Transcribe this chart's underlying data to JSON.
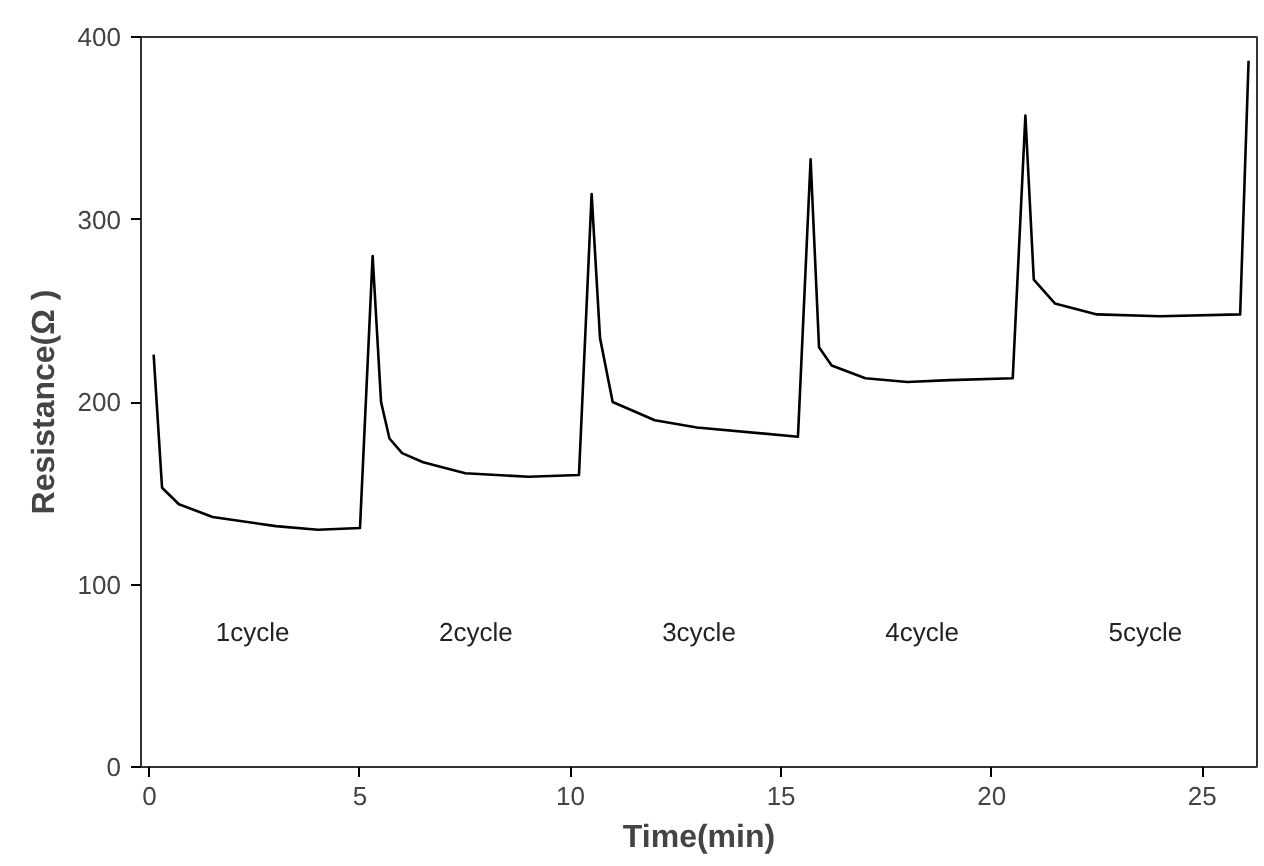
{
  "chart_data": {
    "type": "line",
    "xlabel": "Time(min)",
    "ylabel": "Resistance(Ω )",
    "x": [
      0.1,
      0.3,
      0.7,
      1.5,
      3,
      4,
      5.0,
      5.3,
      5.5,
      5.7,
      6.0,
      6.5,
      7.5,
      9,
      10.2,
      10.5,
      10.7,
      11.0,
      12,
      13,
      15.4,
      15.7,
      15.9,
      16.2,
      17,
      18,
      19,
      20.5,
      20.8,
      21.0,
      21.5,
      22.5,
      24,
      25.9,
      26.1
    ],
    "series": [
      {
        "color": "#000000",
        "values": [
          226,
          153,
          144,
          137,
          132,
          130,
          131,
          280,
          200,
          180,
          172,
          167,
          161,
          159,
          160,
          314,
          235,
          200,
          190,
          186,
          181,
          333,
          230,
          220,
          213,
          211,
          212,
          213,
          357,
          267,
          254,
          248,
          247,
          248,
          387
        ]
      }
    ],
    "xlim": [
      -0.2,
      26.3
    ],
    "ylim": [
      0,
      400
    ],
    "xticks": [
      0,
      5,
      10,
      15,
      20,
      25
    ],
    "yticks": [
      0,
      100,
      200,
      300,
      400
    ],
    "grid": false,
    "marker": "none",
    "line_style": "solid",
    "annotations": [
      "1cycle",
      "2cycle",
      "3cycle",
      "4cycle",
      "5cycle"
    ]
  }
}
